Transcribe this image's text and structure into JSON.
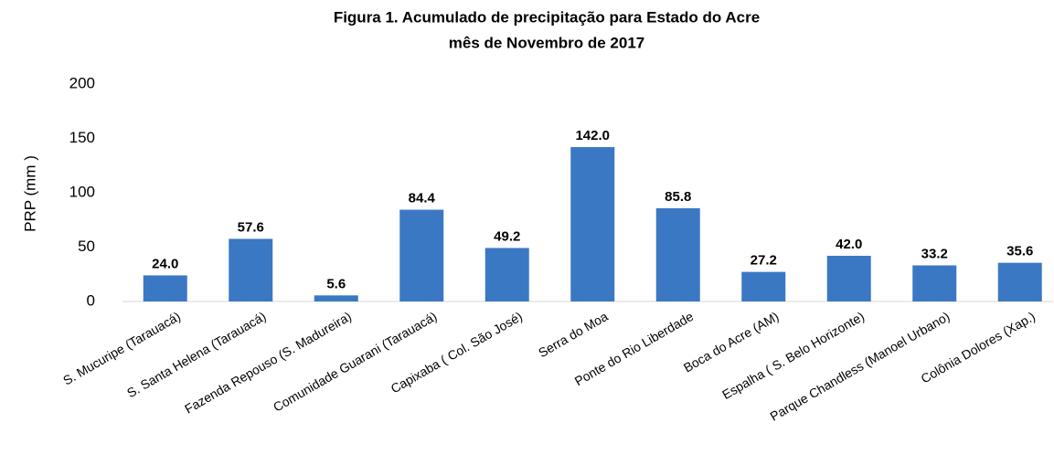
{
  "chart_data": {
    "type": "bar",
    "title": [
      "Figura 1. Acumulado de  precipitação  para Estado do  Acre",
      "mês de  Novembro   de 2017"
    ],
    "y_label": "PRP (mm )",
    "categories": [
      "S. Mucuripe (Tarauacá)",
      "S. Santa Helena (Tarauacá)",
      "Fazenda Repouso (S. Madureira)",
      "Comunidade Guarani (Tarauacá)",
      "Capixaba ( Col. São José)",
      "Serra do Moa",
      "Ponte do Rio Liberdade",
      "Boca do Acre (AM)",
      "Espalha ( S. Belo Horizonte)",
      "Parque Chandless (Manoel Urbano)",
      "Colônia Dolores (Xap.)"
    ],
    "values": [
      24.0,
      57.6,
      5.6,
      84.4,
      49.2,
      142.0,
      85.8,
      27.2,
      42.0,
      33.2,
      35.6
    ],
    "value_labels": [
      "24.0",
      "57.6",
      "5.6",
      "84.4",
      "49.2",
      "142.0",
      "85.8",
      "27.2",
      "42.0",
      "33.2",
      "35.6"
    ],
    "color": "#3b78c4",
    "ylim": [
      0,
      200
    ],
    "yticks": [
      0,
      50,
      100,
      150,
      200
    ],
    "grid": false
  }
}
